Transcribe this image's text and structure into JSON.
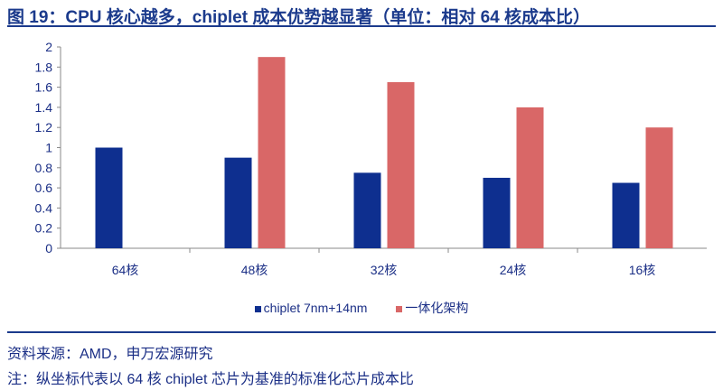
{
  "title": "图 19：CPU 核心越多，chiplet 成本优势越显著（单位：相对 64 核成本比）",
  "source": "资料来源：AMD，申万宏源研究",
  "note": "注：纵坐标代表以 64 核 chiplet 芯片为基准的标准化芯片成本比",
  "chart_data": {
    "type": "bar",
    "categories": [
      "64核",
      "48核",
      "32核",
      "24核",
      "16核"
    ],
    "series": [
      {
        "name": "chiplet 7nm+14nm",
        "values": [
          1.0,
          0.9,
          0.75,
          0.7,
          0.65
        ],
        "color": "#0e2f8f"
      },
      {
        "name": "一体化架构",
        "values": [
          null,
          1.9,
          1.65,
          1.4,
          1.2
        ],
        "color": "#d96767"
      }
    ],
    "ylim": [
      0,
      2
    ],
    "yticks": [
      "0",
      "0.2",
      "0.4",
      "0.6",
      "0.8",
      "1",
      "1.2",
      "1.4",
      "1.6",
      "1.8",
      "2"
    ],
    "grid": false,
    "legend": "bottom"
  }
}
